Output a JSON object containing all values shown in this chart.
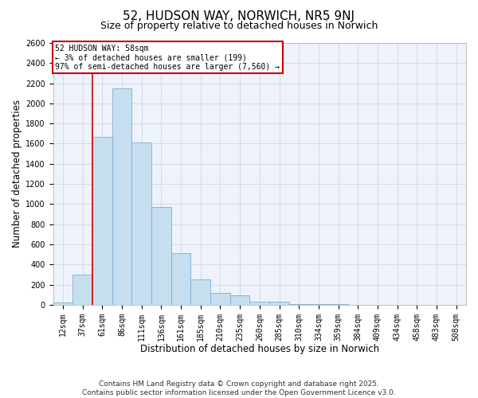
{
  "title": "52, HUDSON WAY, NORWICH, NR5 9NJ",
  "subtitle": "Size of property relative to detached houses in Norwich",
  "xlabel": "Distribution of detached houses by size in Norwich",
  "ylabel": "Number of detached properties",
  "categories": [
    "12sqm",
    "37sqm",
    "61sqm",
    "86sqm",
    "111sqm",
    "136sqm",
    "161sqm",
    "185sqm",
    "210sqm",
    "235sqm",
    "260sqm",
    "285sqm",
    "310sqm",
    "334sqm",
    "359sqm",
    "384sqm",
    "409sqm",
    "434sqm",
    "458sqm",
    "483sqm",
    "508sqm"
  ],
  "values": [
    20,
    300,
    1670,
    2150,
    1610,
    970,
    510,
    250,
    120,
    95,
    30,
    30,
    5,
    5,
    3,
    2,
    1,
    1,
    0,
    0,
    0
  ],
  "bar_color": "#c5dff0",
  "bar_edge_color": "#7aafd4",
  "ylim": [
    0,
    2600
  ],
  "yticks": [
    0,
    200,
    400,
    600,
    800,
    1000,
    1200,
    1400,
    1600,
    1800,
    2000,
    2200,
    2400,
    2600
  ],
  "vline_x": 2,
  "vline_color": "#cc0000",
  "annotation_title": "52 HUDSON WAY: 58sqm",
  "annotation_line1": "← 3% of detached houses are smaller (199)",
  "annotation_line2": "97% of semi-detached houses are larger (7,560) →",
  "annotation_box_color": "#cc0000",
  "annotation_bg": "#ffffff",
  "footer1": "Contains HM Land Registry data © Crown copyright and database right 2025.",
  "footer2": "Contains public sector information licensed under the Open Government Licence v3.0.",
  "plot_bg_color": "#eef2fb",
  "grid_color": "#c8d0e0",
  "title_fontsize": 11,
  "subtitle_fontsize": 9,
  "axis_label_fontsize": 8.5,
  "tick_fontsize": 7,
  "annotation_fontsize": 7,
  "footer_fontsize": 6.5
}
